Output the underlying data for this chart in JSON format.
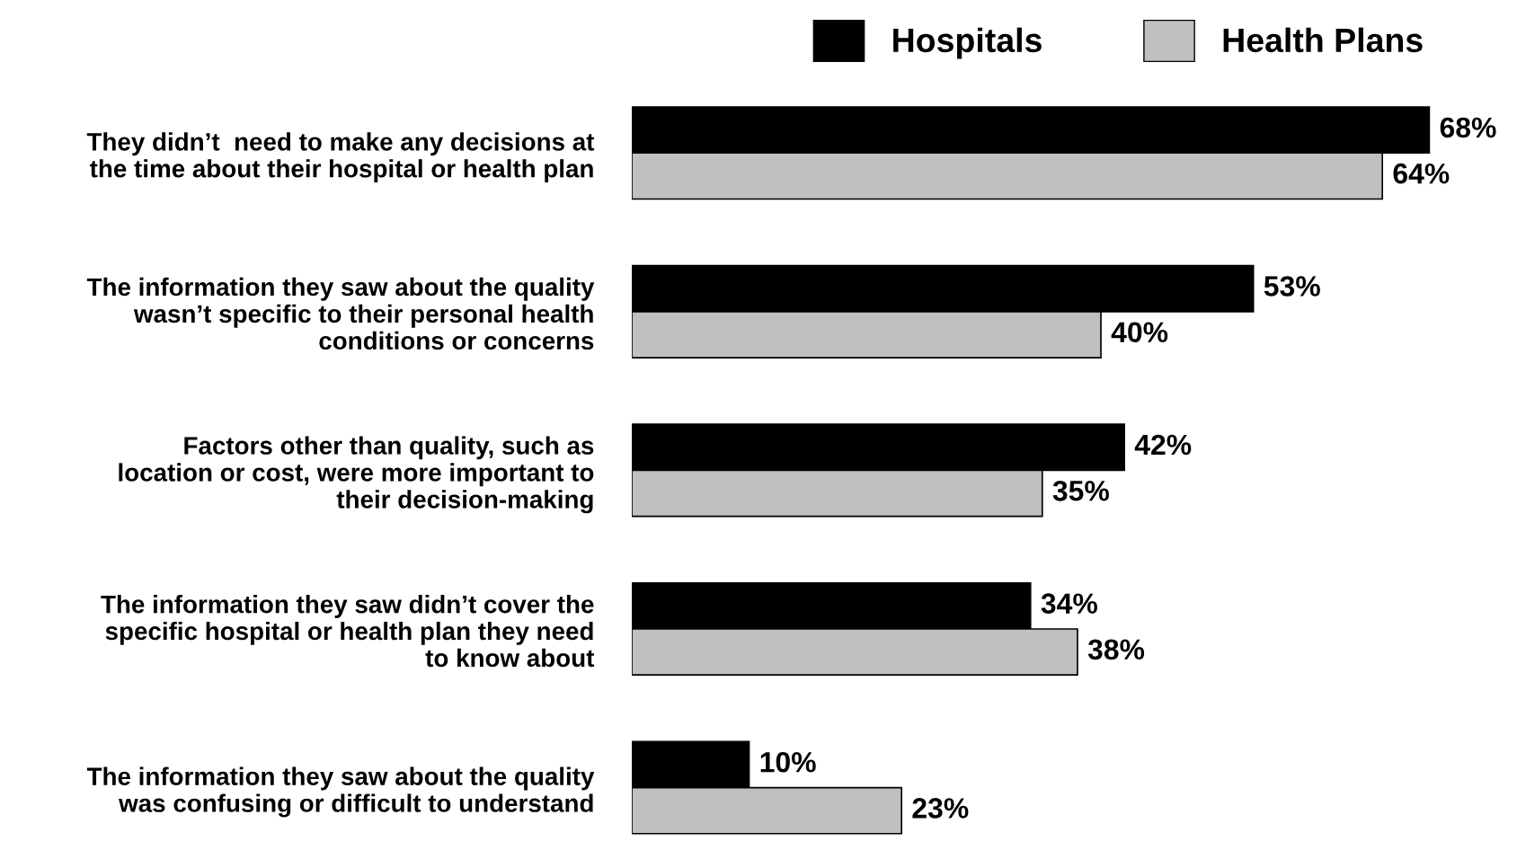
{
  "chart_data": {
    "type": "bar",
    "orientation": "horizontal",
    "categories": [
      "They didn’t  need to make any decisions at\nthe time about their hospital or health plan",
      "The information they saw about the quality\nwasn’t specific to their personal health\nconditions or concerns",
      "Factors other than quality, such as\nlocation or cost, were more important to\ntheir decision-making",
      "The information they saw didn’t cover the\nspecific hospital or health plan they need\nto know about",
      "The information they saw about the quality\nwas confusing or difficult to understand"
    ],
    "series": [
      {
        "name": "Hospitals",
        "color": "#000000",
        "values": [
          68,
          53,
          42,
          34,
          10
        ],
        "value_labels": [
          "68%",
          "53%",
          "42%",
          "34%",
          "10%"
        ]
      },
      {
        "name": "Health Plans",
        "color": "#c0c0c0",
        "values": [
          64,
          40,
          35,
          38,
          23
        ],
        "value_labels": [
          "64%",
          "40%",
          "35%",
          "38%",
          "23%"
        ]
      }
    ],
    "tick_labels": "y",
    "grid": false,
    "legend": "top"
  }
}
